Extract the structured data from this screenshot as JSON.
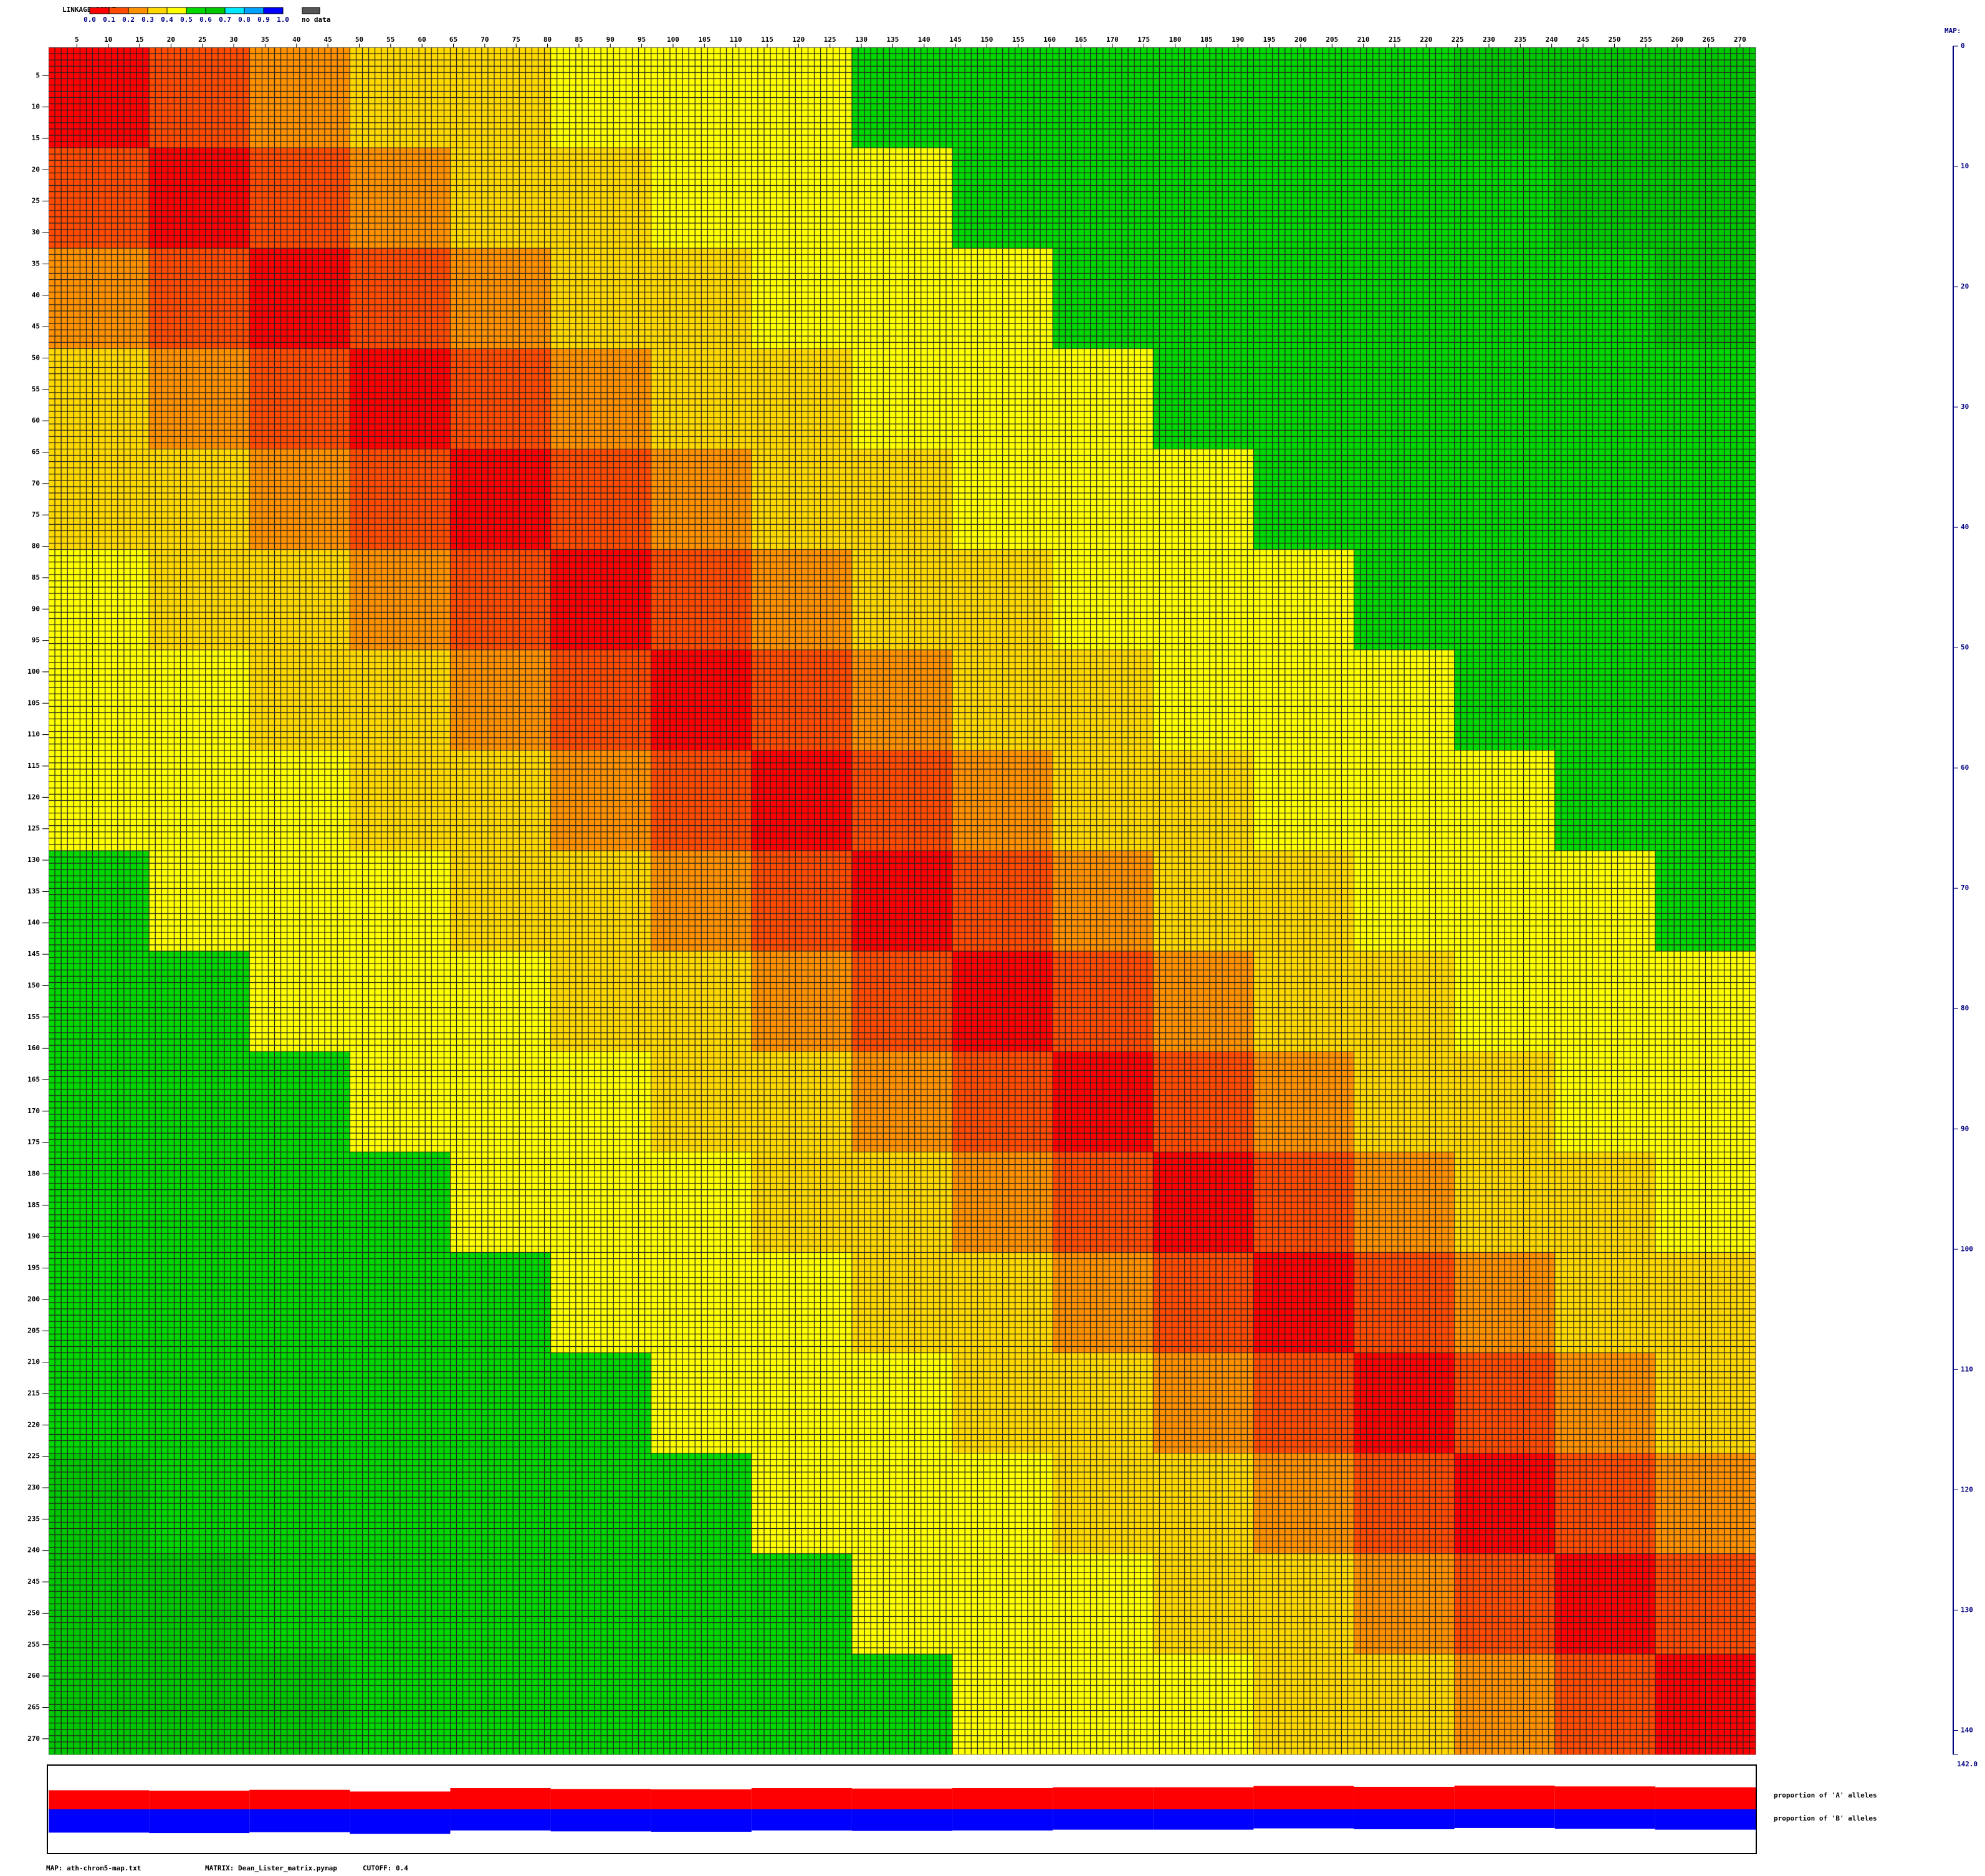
{
  "chart_data": {
    "type": "heatmap",
    "legend": {
      "title": "LINKAGE SCALE:",
      "colors": [
        "#ff0000",
        "#ff4a00",
        "#ff9000",
        "#ffd800",
        "#ffff00",
        "#00d800",
        "#00c800",
        "#00e8ff",
        "#00a0ff",
        "#0000ff"
      ],
      "labels": [
        "0.0",
        "0.1",
        "0.2",
        "0.3",
        "0.4",
        "0.5",
        "0.6",
        "0.7",
        "0.8",
        "0.9",
        "1.0"
      ],
      "nodata_color": "#555555",
      "nodata": "no data"
    },
    "markers": 272,
    "xticks": [
      5,
      10,
      15,
      20,
      25,
      30,
      35,
      40,
      45,
      50,
      55,
      60,
      65,
      70,
      75,
      80,
      85,
      90,
      95,
      100,
      105,
      110,
      115,
      120,
      125,
      130,
      135,
      140,
      145,
      150,
      155,
      160,
      165,
      170,
      175,
      180,
      185,
      190,
      195,
      200,
      205,
      210,
      215,
      220,
      225,
      230,
      235,
      240,
      245,
      250,
      255,
      260,
      265,
      270
    ],
    "matrix": [
      [
        0.05,
        0.15,
        0.25,
        0.32,
        0.38,
        0.42,
        0.45,
        0.48,
        0.5,
        0.52,
        0.55,
        0.55,
        0.58,
        0.58,
        0.6,
        0.6,
        0.6
      ],
      [
        0.15,
        0.05,
        0.15,
        0.25,
        0.32,
        0.38,
        0.42,
        0.45,
        0.48,
        0.5,
        0.52,
        0.55,
        0.55,
        0.58,
        0.58,
        0.6,
        0.6
      ],
      [
        0.25,
        0.15,
        0.05,
        0.15,
        0.25,
        0.32,
        0.38,
        0.42,
        0.45,
        0.48,
        0.5,
        0.52,
        0.55,
        0.55,
        0.58,
        0.58,
        0.6
      ],
      [
        0.32,
        0.25,
        0.15,
        0.05,
        0.15,
        0.25,
        0.32,
        0.38,
        0.42,
        0.45,
        0.48,
        0.5,
        0.52,
        0.55,
        0.55,
        0.58,
        0.58
      ],
      [
        0.38,
        0.32,
        0.25,
        0.15,
        0.05,
        0.15,
        0.25,
        0.32,
        0.38,
        0.42,
        0.45,
        0.48,
        0.5,
        0.52,
        0.55,
        0.55,
        0.58
      ],
      [
        0.42,
        0.38,
        0.32,
        0.25,
        0.15,
        0.05,
        0.15,
        0.25,
        0.32,
        0.38,
        0.42,
        0.45,
        0.48,
        0.5,
        0.52,
        0.55,
        0.55
      ],
      [
        0.45,
        0.42,
        0.38,
        0.32,
        0.25,
        0.15,
        0.05,
        0.15,
        0.25,
        0.32,
        0.38,
        0.42,
        0.45,
        0.48,
        0.5,
        0.52,
        0.55
      ],
      [
        0.48,
        0.45,
        0.42,
        0.38,
        0.32,
        0.25,
        0.15,
        0.05,
        0.15,
        0.25,
        0.32,
        0.38,
        0.42,
        0.45,
        0.48,
        0.5,
        0.52
      ],
      [
        0.5,
        0.48,
        0.45,
        0.42,
        0.38,
        0.32,
        0.25,
        0.15,
        0.05,
        0.15,
        0.25,
        0.32,
        0.38,
        0.42,
        0.45,
        0.48,
        0.5
      ],
      [
        0.52,
        0.5,
        0.48,
        0.45,
        0.42,
        0.38,
        0.32,
        0.25,
        0.15,
        0.05,
        0.15,
        0.25,
        0.32,
        0.38,
        0.42,
        0.45,
        0.48
      ],
      [
        0.55,
        0.52,
        0.5,
        0.48,
        0.45,
        0.42,
        0.38,
        0.32,
        0.25,
        0.15,
        0.05,
        0.15,
        0.25,
        0.32,
        0.38,
        0.42,
        0.45
      ],
      [
        0.55,
        0.55,
        0.52,
        0.5,
        0.48,
        0.45,
        0.42,
        0.38,
        0.32,
        0.25,
        0.15,
        0.05,
        0.15,
        0.25,
        0.32,
        0.38,
        0.42
      ],
      [
        0.58,
        0.55,
        0.55,
        0.52,
        0.5,
        0.48,
        0.45,
        0.42,
        0.38,
        0.32,
        0.25,
        0.15,
        0.05,
        0.15,
        0.25,
        0.32,
        0.38
      ],
      [
        0.58,
        0.58,
        0.55,
        0.55,
        0.52,
        0.5,
        0.48,
        0.45,
        0.42,
        0.38,
        0.32,
        0.25,
        0.15,
        0.05,
        0.15,
        0.25,
        0.32
      ],
      [
        0.6,
        0.58,
        0.58,
        0.55,
        0.55,
        0.52,
        0.5,
        0.48,
        0.45,
        0.42,
        0.38,
        0.32,
        0.25,
        0.15,
        0.05,
        0.15,
        0.25
      ],
      [
        0.6,
        0.6,
        0.58,
        0.58,
        0.55,
        0.55,
        0.52,
        0.5,
        0.48,
        0.45,
        0.42,
        0.38,
        0.32,
        0.25,
        0.15,
        0.05,
        0.15
      ],
      [
        0.6,
        0.6,
        0.6,
        0.58,
        0.58,
        0.55,
        0.55,
        0.52,
        0.5,
        0.48,
        0.45,
        0.42,
        0.38,
        0.32,
        0.25,
        0.15,
        0.05
      ]
    ],
    "allele_a": {
      "label": "proportion of 'A' alleles",
      "color": "#ff0000",
      "values": [
        0.45,
        0.44,
        0.46,
        0.42,
        0.5,
        0.48,
        0.47,
        0.5,
        0.49,
        0.5,
        0.52,
        0.52,
        0.55,
        0.53,
        0.56,
        0.54,
        0.52
      ]
    },
    "allele_b": {
      "label": "proportion of 'B' alleles",
      "color": "#0000ff",
      "values": [
        0.55,
        0.56,
        0.54,
        0.58,
        0.5,
        0.52,
        0.53,
        0.5,
        0.51,
        0.5,
        0.48,
        0.48,
        0.45,
        0.47,
        0.44,
        0.46,
        0.48
      ]
    },
    "map": {
      "title": "MAP:",
      "ticks": [
        0,
        10,
        20,
        30,
        40,
        50,
        60,
        70,
        80,
        90,
        100,
        110,
        120,
        130,
        140
      ],
      "end": {
        "value": 142,
        "label": "142.0"
      }
    },
    "footer": {
      "map": "MAP: ath-chrom5-map.txt",
      "matrix": "MATRIX: Dean_Lister_matrix.pymap",
      "cutoff": "CUTOFF: 0.4"
    }
  }
}
